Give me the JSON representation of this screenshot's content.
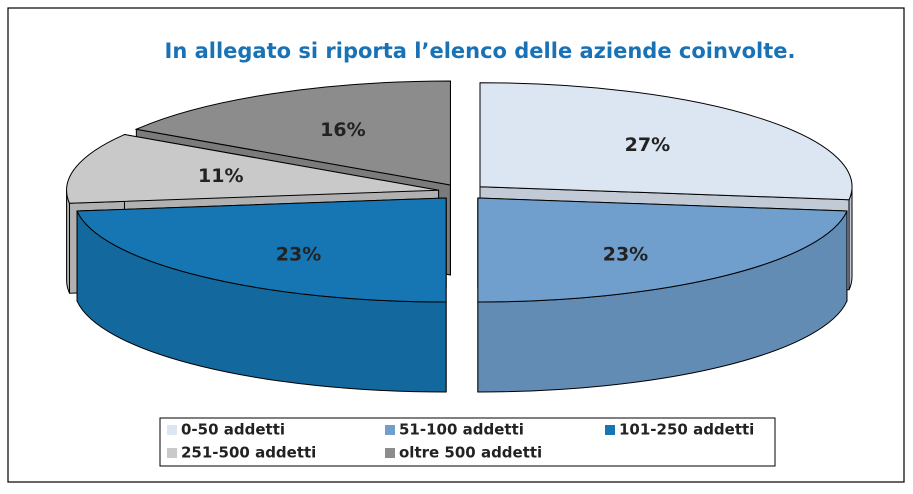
{
  "chart_data": {
    "type": "pie",
    "title": "In allegato si riporta l’elenco delle aziende coinvolte.",
    "categories": [
      "0-50 addetti",
      "51-100 addetti",
      "101-250 addetti",
      "251-500 addetti",
      "oltre 500 addetti"
    ],
    "values": [
      27,
      23,
      23,
      11,
      16
    ],
    "value_labels": [
      "27%",
      "23%",
      "23%",
      "11%",
      "16%"
    ],
    "colors": [
      "#dce5f2",
      "#709fce",
      "#1676b4",
      "#c9c9c9",
      "#8c8c8c"
    ]
  }
}
